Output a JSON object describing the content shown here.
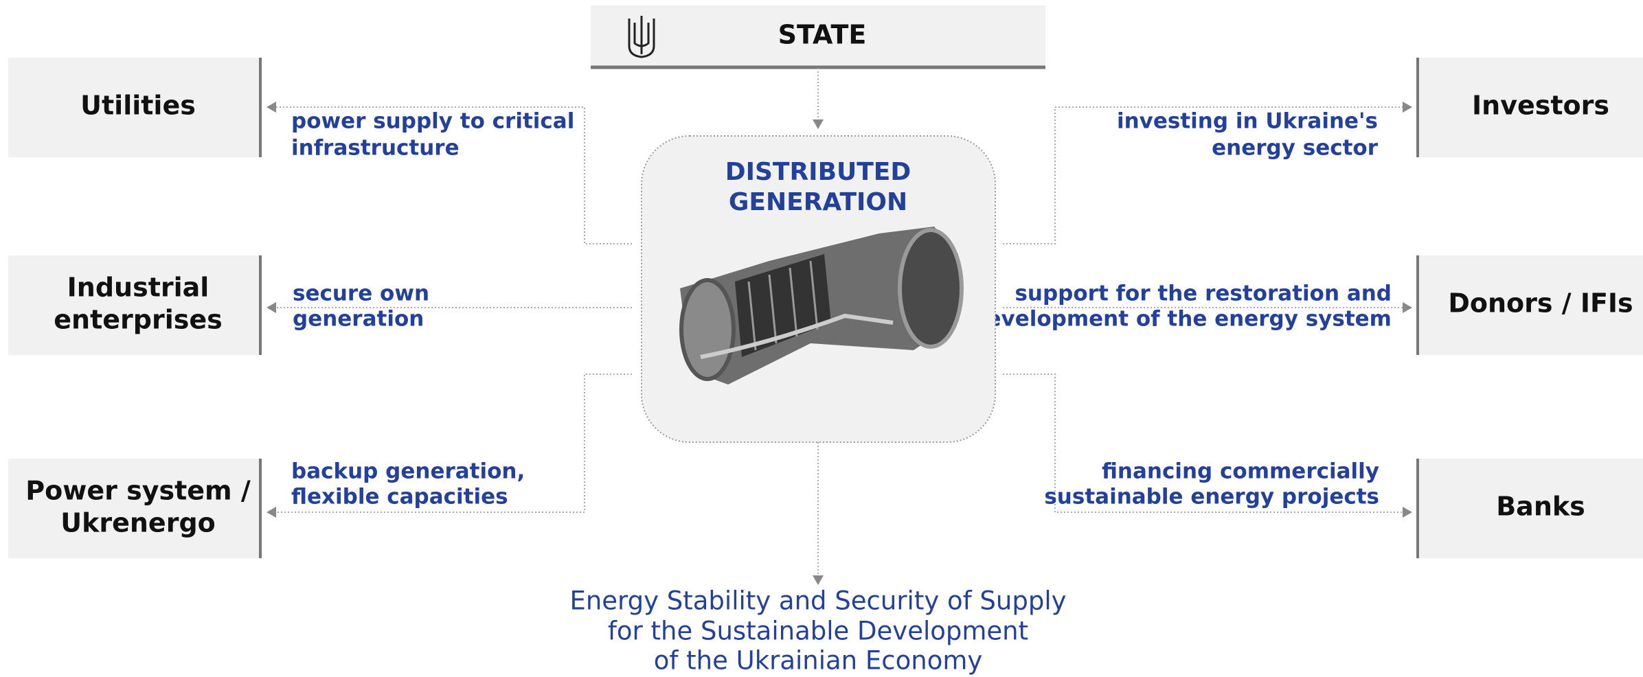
{
  "state": {
    "label": "STATE"
  },
  "center": {
    "title": [
      "DISTRIBUTED",
      "GENERATION"
    ]
  },
  "left_nodes": [
    {
      "label": [
        "Utilities"
      ],
      "flow": [
        "power supply to critical",
        "infrastructure"
      ]
    },
    {
      "label": [
        "Industrial",
        "enterprises"
      ],
      "flow": [
        "secure own",
        "generation"
      ]
    },
    {
      "label": [
        "Power system /",
        "Ukrenergo"
      ],
      "flow": [
        "backup generation,",
        "flexible capacities"
      ]
    }
  ],
  "right_nodes": [
    {
      "label": [
        "Investors"
      ],
      "flow": [
        "investing in Ukraine's",
        "energy sector"
      ]
    },
    {
      "label": [
        "Donors / IFIs"
      ],
      "flow": [
        "support for the restoration and",
        "development of the energy system"
      ]
    },
    {
      "label": [
        "Banks"
      ],
      "flow": [
        "financing commercially",
        "sustainable energy projects"
      ]
    }
  ],
  "outcome": [
    "Energy Stability and Security of Supply",
    "for the Sustainable Development",
    "of the Ukrainian Economy"
  ]
}
